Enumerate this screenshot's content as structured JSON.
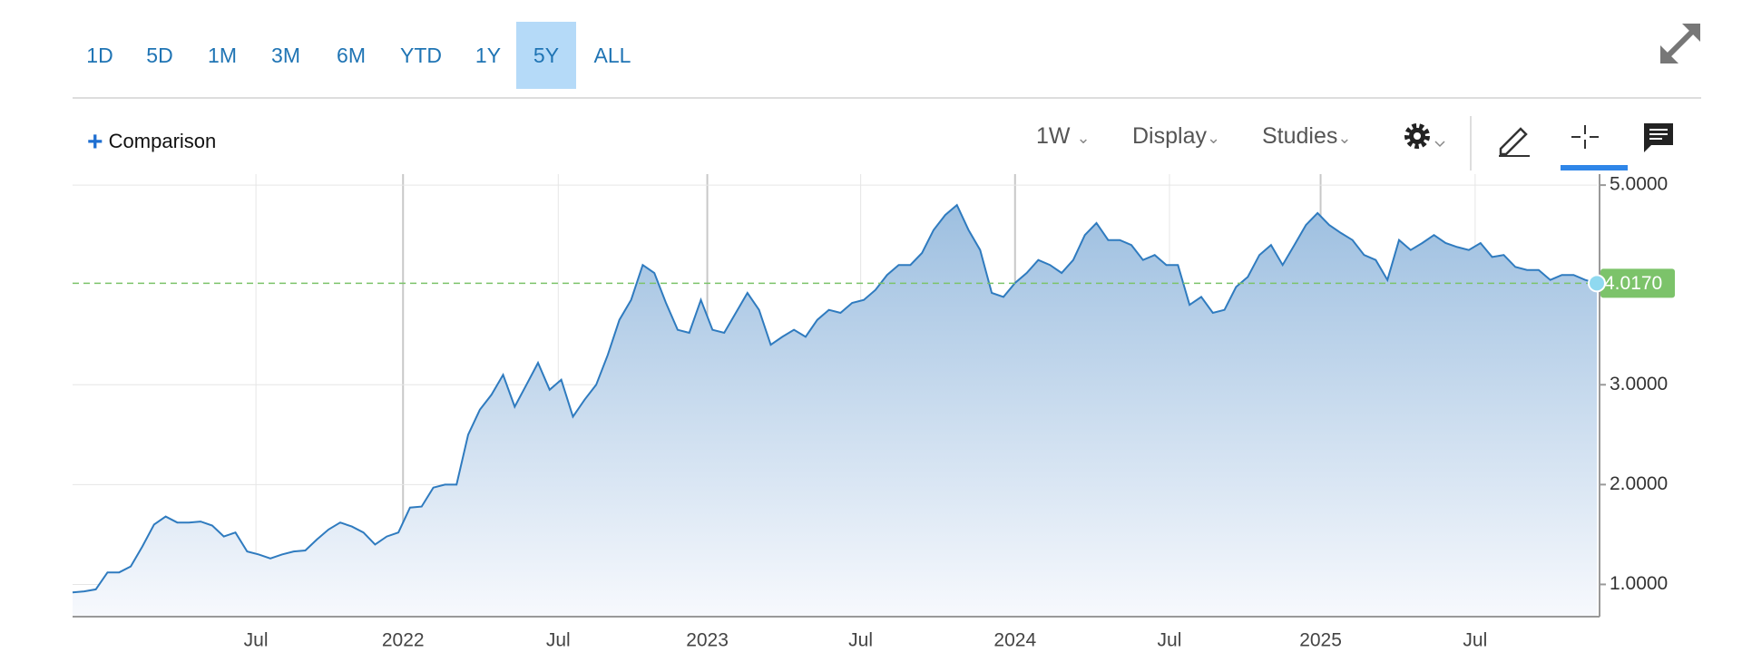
{
  "range_buttons": [
    "1D",
    "5D",
    "1M",
    "3M",
    "6M",
    "YTD",
    "1Y",
    "5Y",
    "ALL"
  ],
  "comparison": "Comparison",
  "toolbar": {
    "interval": "1W",
    "display": "Display",
    "studies": "Studies"
  },
  "chart_data": {
    "type": "area",
    "color": "#2f7bbf",
    "grid": true,
    "values": [
      0.92,
      0.93,
      0.95,
      1.12,
      1.12,
      1.18,
      1.38,
      1.6,
      1.68,
      1.62,
      1.62,
      1.63,
      1.59,
      1.48,
      1.52,
      1.33,
      1.3,
      1.26,
      1.3,
      1.33,
      1.34,
      1.45,
      1.55,
      1.62,
      1.58,
      1.52,
      1.4,
      1.48,
      1.52,
      1.77,
      1.78,
      1.97,
      2.0,
      2.0,
      2.5,
      2.75,
      2.9,
      3.1,
      2.78,
      3.0,
      3.22,
      2.95,
      3.05,
      2.68,
      2.85,
      3.0,
      3.3,
      3.65,
      3.85,
      4.2,
      4.12,
      3.82,
      3.55,
      3.52,
      3.85,
      3.55,
      3.52,
      3.72,
      3.92,
      3.75,
      3.4,
      3.48,
      3.55,
      3.48,
      3.65,
      3.75,
      3.72,
      3.82,
      3.85,
      3.95,
      4.1,
      4.2,
      4.2,
      4.32,
      4.55,
      4.7,
      4.8,
      4.55,
      4.35,
      3.92,
      3.88,
      4.02,
      4.12,
      4.25,
      4.2,
      4.12,
      4.25,
      4.5,
      4.62,
      4.45,
      4.45,
      4.4,
      4.25,
      4.3,
      4.2,
      4.2,
      3.8,
      3.88,
      3.72,
      3.75,
      3.98,
      4.08,
      4.3,
      4.4,
      4.2,
      4.4,
      4.6,
      4.72,
      4.6,
      4.52,
      4.45,
      4.3,
      4.25,
      4.05,
      4.45,
      4.35,
      4.42,
      4.5,
      4.42,
      4.38,
      4.35,
      4.42,
      4.28,
      4.3,
      4.18,
      4.15,
      4.15,
      4.05,
      4.1,
      4.1,
      4.05,
      4.017
    ],
    "xlim": [
      0,
      131
    ],
    "xticks": [
      {
        "value": 15.76,
        "label": "Jul"
      },
      {
        "value": 28.4,
        "label": "2022"
      },
      {
        "value": 41.74,
        "label": "Jul"
      },
      {
        "value": 54.55,
        "label": "2023"
      },
      {
        "value": 67.73,
        "label": "Jul"
      },
      {
        "value": 81.0,
        "label": "2024"
      },
      {
        "value": 94.27,
        "label": "Jul"
      },
      {
        "value": 107.26,
        "label": "2025"
      },
      {
        "value": 120.54,
        "label": "Jul"
      }
    ],
    "ylim": [
      0.677,
      5.11
    ],
    "yticks": [
      {
        "value": 1,
        "label": "1.0000"
      },
      {
        "value": 2,
        "label": "2.0000"
      },
      {
        "value": 3,
        "label": "3.0000"
      },
      {
        "value": 5,
        "label": "5.0000"
      }
    ],
    "last_price": {
      "value": 4.017,
      "label": "4.0170",
      "color": "#7cc36a"
    }
  }
}
